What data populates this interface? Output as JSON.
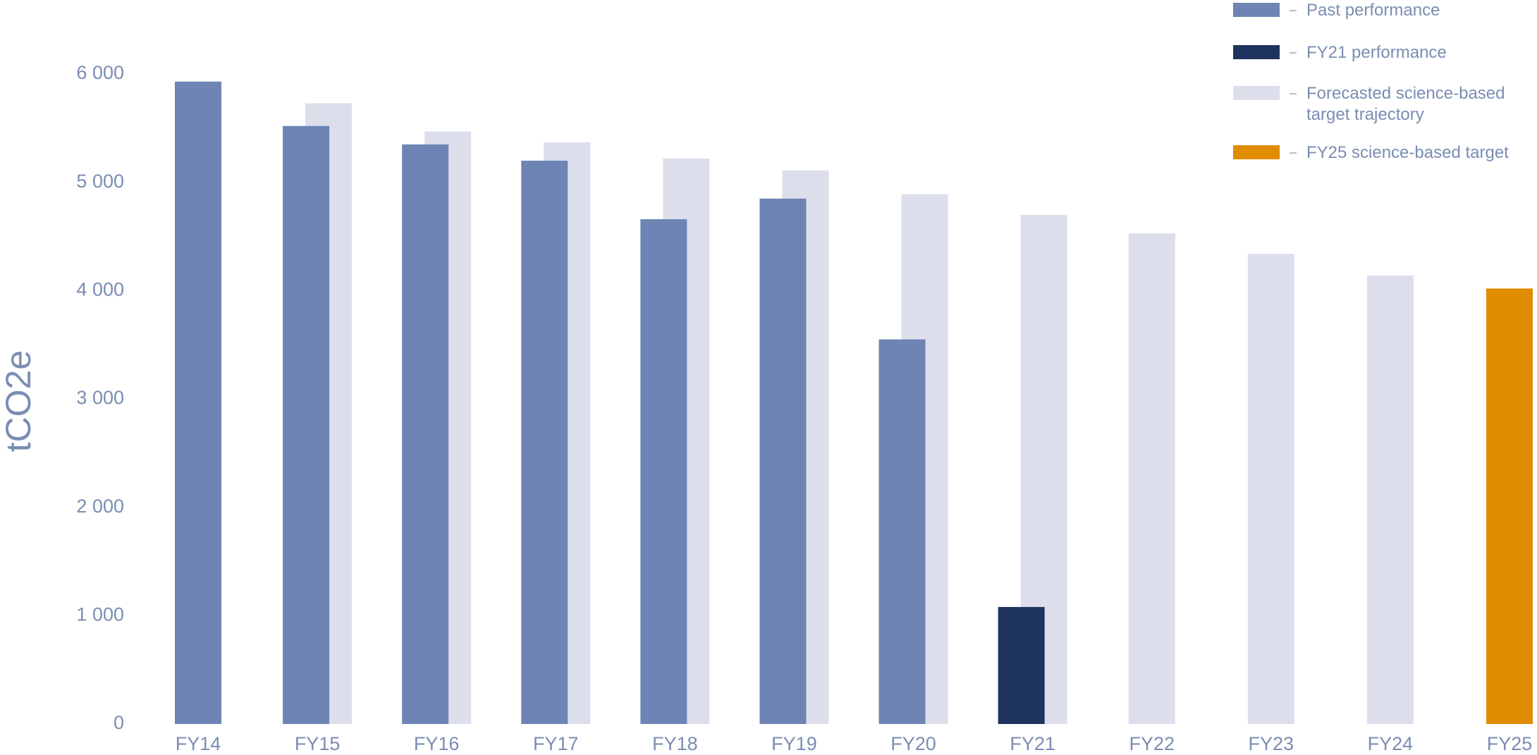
{
  "chart_data": {
    "type": "bar",
    "y_label": "tCO2e",
    "categories": [
      "FY14",
      "FY15",
      "FY16",
      "FY17",
      "FY18",
      "FY19",
      "FY20",
      "FY21",
      "FY22",
      "FY23",
      "FY24",
      "FY25"
    ],
    "series": [
      {
        "name": "Past performance",
        "color": "#6d84b4",
        "values": [
          5930,
          5520,
          5350,
          5200,
          4660,
          4850,
          3550,
          null,
          null,
          null,
          null,
          null
        ]
      },
      {
        "name": "FY21 performance",
        "color": "#1e335e",
        "values": [
          null,
          null,
          null,
          null,
          null,
          null,
          null,
          1080,
          null,
          null,
          null,
          null
        ]
      },
      {
        "name": "Forecasted science-based target trajectory",
        "color": "#dcdfeb",
        "values": [
          null,
          5730,
          5470,
          5370,
          5220,
          5110,
          4890,
          4700,
          4530,
          4340,
          4140,
          null
        ]
      },
      {
        "name": "FY25 science-based target",
        "color": "#e08c00",
        "values": [
          null,
          null,
          null,
          null,
          null,
          null,
          null,
          null,
          null,
          null,
          null,
          4020
        ]
      }
    ],
    "ylim": [
      0,
      6000
    ],
    "yticks": [
      0,
      {
        "value": 1000,
        "label": "1 000"
      },
      {
        "value": 2000,
        "label": "2 000"
      },
      {
        "value": 3000,
        "label": "3 000"
      },
      {
        "value": 4000,
        "label": "4 000"
      },
      {
        "value": 5000,
        "label": "5 000"
      },
      {
        "value": 6000,
        "label": "6 000"
      }
    ],
    "grid": false,
    "legend": "top-right"
  }
}
